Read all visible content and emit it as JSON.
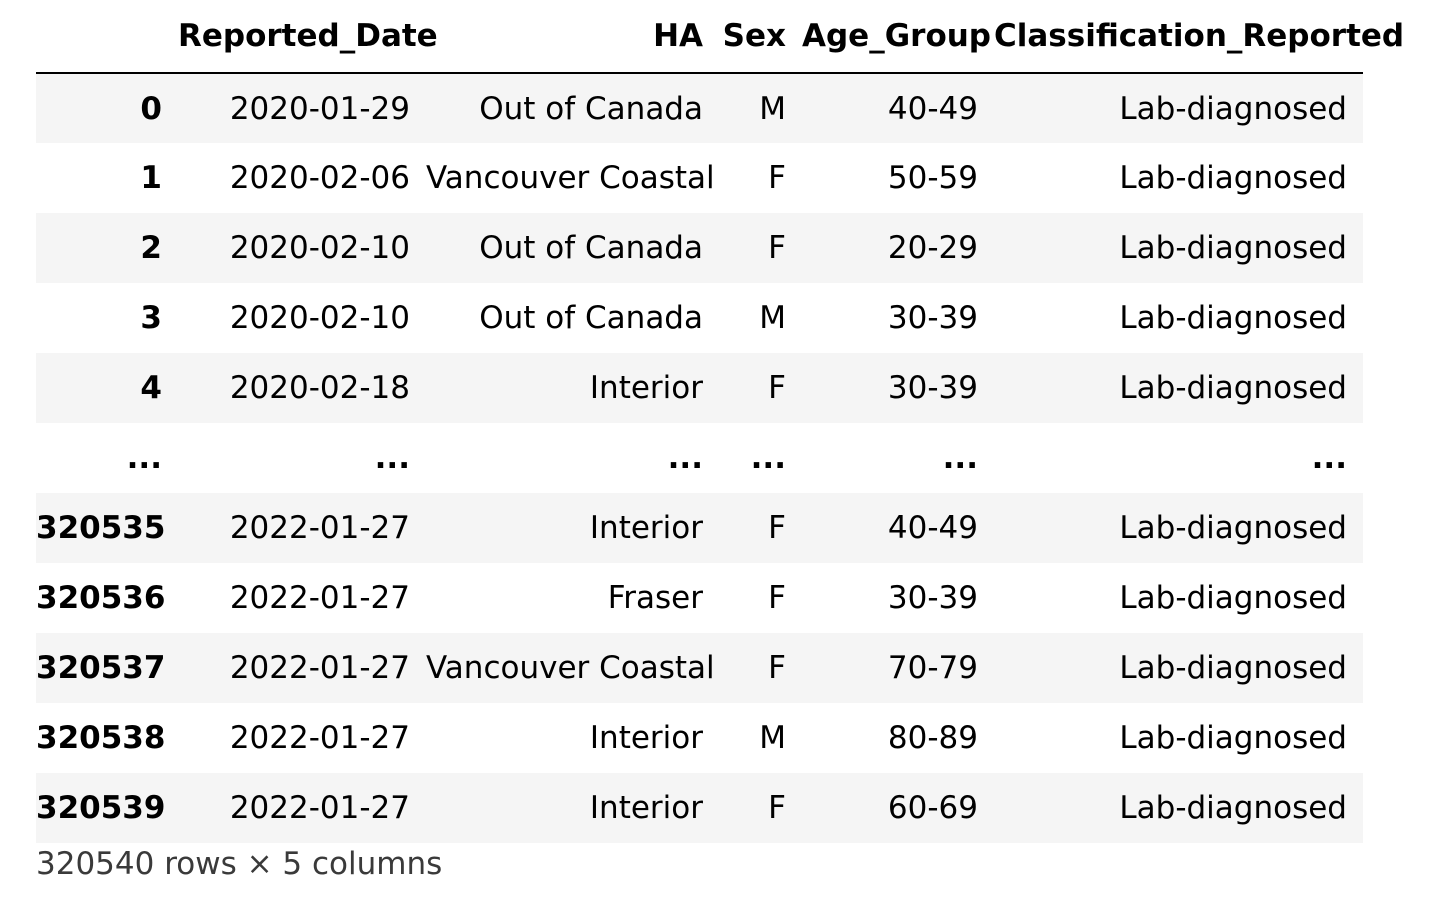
{
  "table": {
    "columns": {
      "index": "",
      "date": "Reported_Date",
      "ha": "HA",
      "sex": "Sex",
      "age": "Age_Group",
      "classification": "Classification_Reported"
    },
    "rows": [
      {
        "index": "0",
        "date": "2020-01-29",
        "ha": "Out of Canada",
        "sex": "M",
        "age": "40-49",
        "classification": "Lab-diagnosed"
      },
      {
        "index": "1",
        "date": "2020-02-06",
        "ha": "Vancouver Coastal",
        "sex": "F",
        "age": "50-59",
        "classification": "Lab-diagnosed"
      },
      {
        "index": "2",
        "date": "2020-02-10",
        "ha": "Out of Canada",
        "sex": "F",
        "age": "20-29",
        "classification": "Lab-diagnosed"
      },
      {
        "index": "3",
        "date": "2020-02-10",
        "ha": "Out of Canada",
        "sex": "M",
        "age": "30-39",
        "classification": "Lab-diagnosed"
      },
      {
        "index": "4",
        "date": "2020-02-18",
        "ha": "Interior",
        "sex": "F",
        "age": "30-39",
        "classification": "Lab-diagnosed"
      },
      {
        "index": "...",
        "date": "...",
        "ha": "...",
        "sex": "...",
        "age": "...",
        "classification": "..."
      },
      {
        "index": "320535",
        "date": "2022-01-27",
        "ha": "Interior",
        "sex": "F",
        "age": "40-49",
        "classification": "Lab-diagnosed"
      },
      {
        "index": "320536",
        "date": "2022-01-27",
        "ha": "Fraser",
        "sex": "F",
        "age": "30-39",
        "classification": "Lab-diagnosed"
      },
      {
        "index": "320537",
        "date": "2022-01-27",
        "ha": "Vancouver Coastal",
        "sex": "F",
        "age": "70-79",
        "classification": "Lab-diagnosed"
      },
      {
        "index": "320538",
        "date": "2022-01-27",
        "ha": "Interior",
        "sex": "M",
        "age": "80-89",
        "classification": "Lab-diagnosed"
      },
      {
        "index": "320539",
        "date": "2022-01-27",
        "ha": "Interior",
        "sex": "F",
        "age": "60-69",
        "classification": "Lab-diagnosed"
      }
    ],
    "shape_text": "320540 rows × 5 columns"
  },
  "colors": {
    "stripe": "#f5f5f5",
    "header_rule": "#000000",
    "footer_text": "#3a3a3a"
  }
}
